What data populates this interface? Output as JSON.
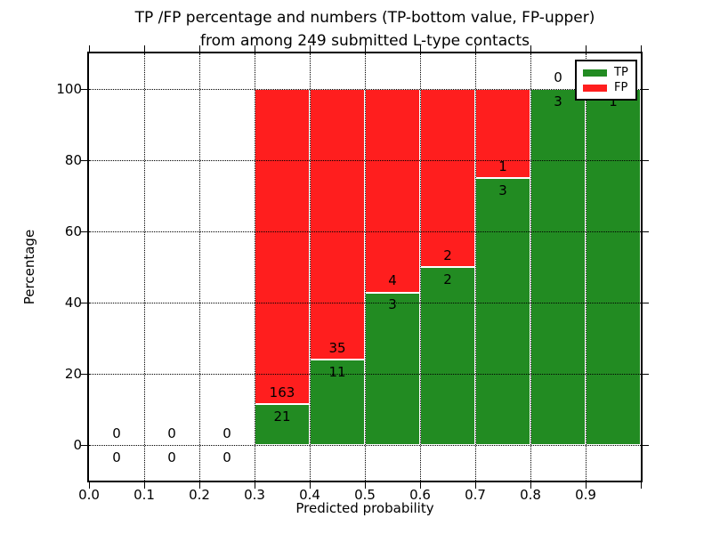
{
  "chart_data": {
    "type": "bar",
    "stacked": true,
    "title_line1": "TP /FP percentage and numbers (TP-bottom value, FP-upper)",
    "title_line2": "from among 249 submitted L-type contacts",
    "total_contacts": 249,
    "xlabel": "Predicted probability",
    "ylabel": "Percentage",
    "xlim": [
      0.0,
      1.0
    ],
    "ylim": [
      -10,
      110
    ],
    "x_ticks": [
      "0.0",
      "0.1",
      "0.2",
      "0.3",
      "0.4",
      "0.5",
      "0.6",
      "0.7",
      "0.8",
      "0.9"
    ],
    "x_tick_values": [
      0.0,
      0.1,
      0.2,
      0.3,
      0.4,
      0.5,
      0.6,
      0.7,
      0.8,
      0.9
    ],
    "y_ticks": [
      "0",
      "20",
      "40",
      "60",
      "80",
      "100"
    ],
    "y_tick_values": [
      0,
      20,
      40,
      60,
      80,
      100
    ],
    "grid": "dotted",
    "colors": {
      "tp": "#228B22",
      "fp": "#FF1E1E",
      "edge": "#FFFFFF",
      "grid": "#000000"
    },
    "legend": {
      "position": "upper right",
      "entries": [
        {
          "label": "TP",
          "color": "#228B22"
        },
        {
          "label": "FP",
          "color": "#FF1E1E"
        }
      ]
    },
    "bars": [
      {
        "x_start": 0.0,
        "x_end": 0.1,
        "tp": 0,
        "fp": 0,
        "tp_pct": 0,
        "total_pct": 0
      },
      {
        "x_start": 0.1,
        "x_end": 0.2,
        "tp": 0,
        "fp": 0,
        "tp_pct": 0,
        "total_pct": 0
      },
      {
        "x_start": 0.2,
        "x_end": 0.3,
        "tp": 0,
        "fp": 0,
        "tp_pct": 0,
        "total_pct": 0
      },
      {
        "x_start": 0.3,
        "x_end": 0.4,
        "tp": 21,
        "fp": 163,
        "tp_pct": 11.41,
        "total_pct": 100
      },
      {
        "x_start": 0.4,
        "x_end": 0.5,
        "tp": 11,
        "fp": 35,
        "tp_pct": 23.91,
        "total_pct": 100
      },
      {
        "x_start": 0.5,
        "x_end": 0.6,
        "tp": 3,
        "fp": 4,
        "tp_pct": 42.86,
        "total_pct": 100
      },
      {
        "x_start": 0.6,
        "x_end": 0.7,
        "tp": 2,
        "fp": 2,
        "tp_pct": 50,
        "total_pct": 100
      },
      {
        "x_start": 0.7,
        "x_end": 0.8,
        "tp": 3,
        "fp": 1,
        "tp_pct": 75,
        "total_pct": 100
      },
      {
        "x_start": 0.8,
        "x_end": 0.9,
        "tp": 3,
        "fp": 0,
        "tp_pct": 100,
        "total_pct": 100
      },
      {
        "x_start": 0.9,
        "x_end": 1.0,
        "tp": 1,
        "fp": 0,
        "tp_pct": 100,
        "total_pct": 100
      }
    ]
  }
}
